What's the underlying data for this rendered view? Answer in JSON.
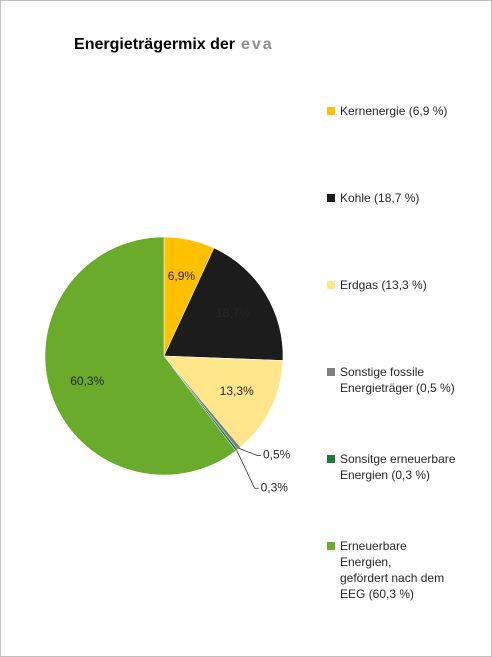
{
  "chart_data": {
    "type": "pie",
    "title": "Energieträgermix der",
    "title_brand": "eva",
    "categories": [
      "Kernenergie (6,9 %)",
      "Kohle (18,7 %)",
      "Erdgas (13,3 %)",
      "Sonstige fossile\nEnergieträger (0,5 %)",
      "Sonsitge erneuerbare\nEnergien (0,3 %)",
      "Erneuerbare\nEnergien,\ngefördert nach dem\nEEG (60,3 %)"
    ],
    "values": [
      6.9,
      18.7,
      13.3,
      0.5,
      0.3,
      60.3
    ],
    "value_labels": [
      "6,9%",
      "18,7%",
      "13,3%",
      "0,5%",
      "0,3%",
      "60,3%"
    ],
    "colors": [
      "#ffc000",
      "#1c1c1c",
      "#ffe68a",
      "#7f7f7f",
      "#1e7b3c",
      "#6aab2b"
    ],
    "legend": "right"
  }
}
